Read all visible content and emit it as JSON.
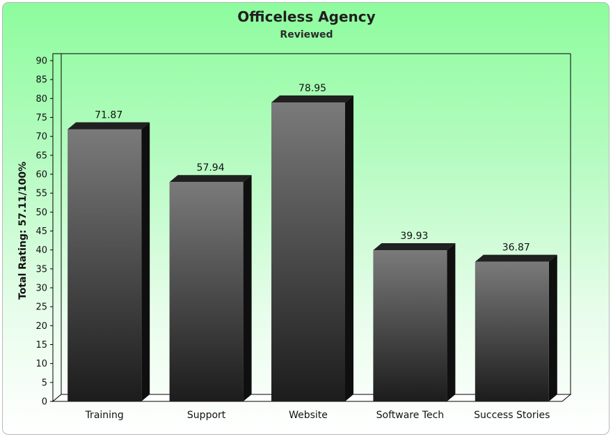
{
  "chart_data": {
    "type": "bar",
    "title": "Officeless Agency",
    "subtitle": "Reviewed",
    "ylabel": "Total Rating: 57.11/100%",
    "xlabel": "",
    "ylim": [
      0,
      90
    ],
    "yticks": [
      0,
      5,
      10,
      15,
      20,
      25,
      30,
      35,
      40,
      45,
      50,
      55,
      60,
      65,
      70,
      75,
      80,
      85,
      90
    ],
    "categories": [
      "Training",
      "Support",
      "Website",
      "Software Tech",
      "Success Stories"
    ],
    "values": [
      71.87,
      57.94,
      78.95,
      39.93,
      36.87
    ],
    "value_labels": [
      "71.87",
      "57.94",
      "78.95",
      "39.93",
      "36.87"
    ],
    "grid": false,
    "legend": "none",
    "colors": {
      "bar_top": "#7a7a7a",
      "bar_bottom": "#1c1c1c",
      "bar_cap": "#202020",
      "bar_side": "#0f0f0f",
      "background_top": "#8dfc9d",
      "background_bottom": "#ffffff"
    }
  }
}
